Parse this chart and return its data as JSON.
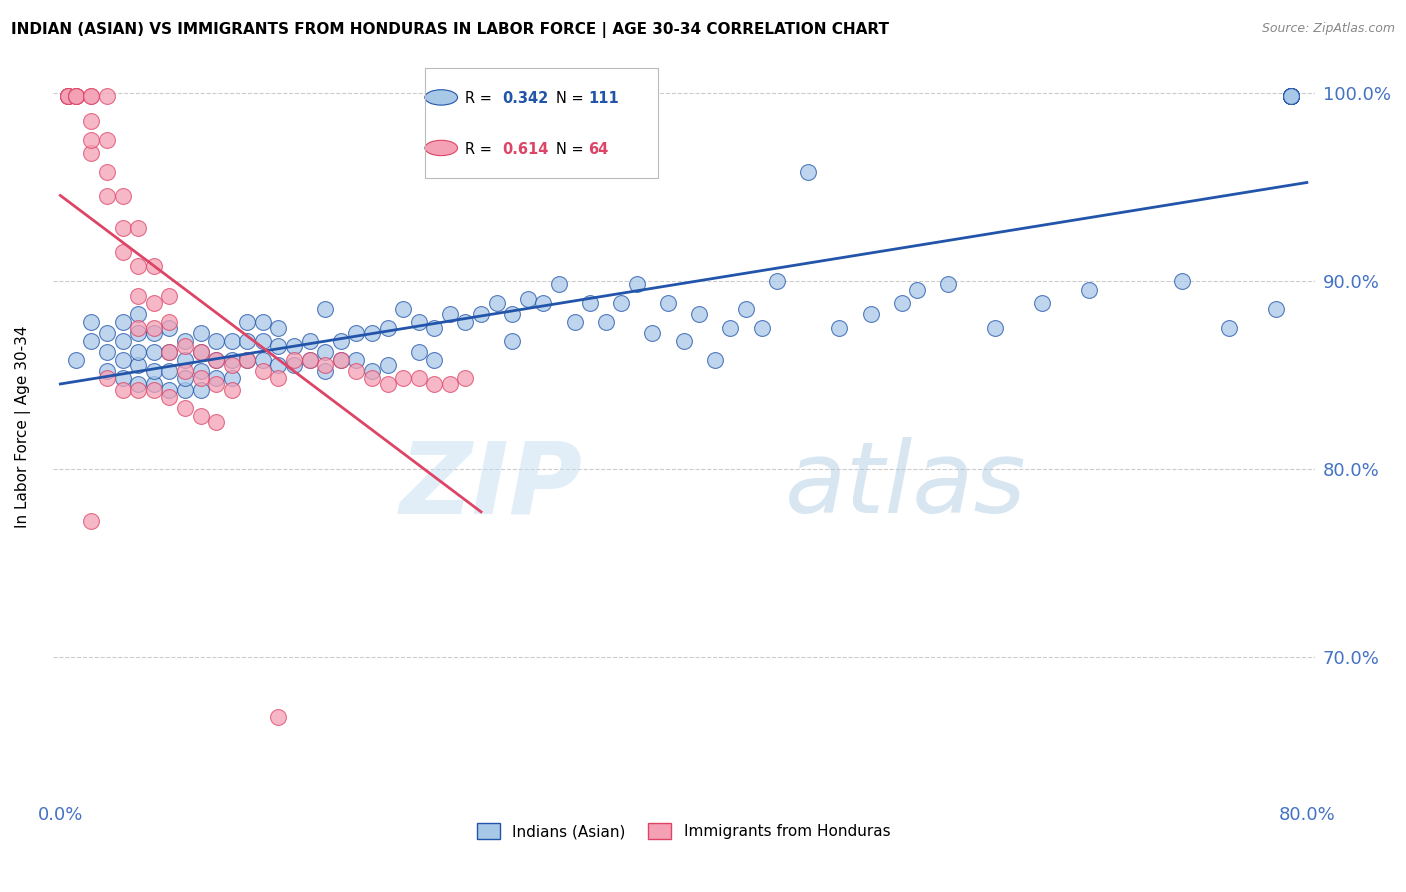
{
  "title": "INDIAN (ASIAN) VS IMMIGRANTS FROM HONDURAS IN LABOR FORCE | AGE 30-34 CORRELATION CHART",
  "source": "Source: ZipAtlas.com",
  "ylabel": "In Labor Force | Age 30-34",
  "xlabel": "",
  "blue_label": "Indians (Asian)",
  "pink_label": "Immigrants from Honduras",
  "blue_R": 0.342,
  "blue_N": 111,
  "pink_R": 0.614,
  "pink_N": 64,
  "blue_color": "#a8c8e8",
  "pink_color": "#f4a0b5",
  "blue_line_color": "#2255aa",
  "pink_line_color": "#dd4466",
  "xlim": [
    -0.005,
    0.805
  ],
  "ylim": [
    0.625,
    1.02
  ],
  "yticks": [
    0.7,
    0.8,
    0.9,
    1.0
  ],
  "ytick_labels": [
    "70.0%",
    "80.0%",
    "90.0%",
    "100.0%"
  ],
  "xticks": [
    0.0,
    0.1,
    0.2,
    0.3,
    0.4,
    0.5,
    0.6,
    0.7,
    0.8
  ],
  "xtick_labels": [
    "0.0%",
    "",
    "",
    "",
    "",
    "",
    "",
    "",
    "80.0%"
  ],
  "background_color": "#ffffff",
  "grid_color": "#cccccc",
  "watermark_zip": "ZIP",
  "watermark_atlas": "atlas",
  "blue_dots_x": [
    0.01,
    0.02,
    0.02,
    0.03,
    0.03,
    0.03,
    0.04,
    0.04,
    0.04,
    0.04,
    0.05,
    0.05,
    0.05,
    0.05,
    0.05,
    0.06,
    0.06,
    0.06,
    0.06,
    0.07,
    0.07,
    0.07,
    0.07,
    0.08,
    0.08,
    0.08,
    0.08,
    0.09,
    0.09,
    0.09,
    0.09,
    0.1,
    0.1,
    0.1,
    0.11,
    0.11,
    0.11,
    0.12,
    0.12,
    0.12,
    0.13,
    0.13,
    0.13,
    0.14,
    0.14,
    0.14,
    0.15,
    0.15,
    0.16,
    0.16,
    0.17,
    0.17,
    0.17,
    0.18,
    0.18,
    0.19,
    0.19,
    0.2,
    0.2,
    0.21,
    0.21,
    0.22,
    0.23,
    0.23,
    0.24,
    0.24,
    0.25,
    0.26,
    0.27,
    0.28,
    0.29,
    0.29,
    0.3,
    0.31,
    0.32,
    0.33,
    0.34,
    0.35,
    0.36,
    0.37,
    0.38,
    0.39,
    0.4,
    0.41,
    0.42,
    0.43,
    0.44,
    0.45,
    0.46,
    0.48,
    0.5,
    0.52,
    0.54,
    0.55,
    0.57,
    0.6,
    0.63,
    0.66,
    0.72,
    0.75,
    0.78,
    0.79,
    0.79,
    0.79,
    0.79,
    0.79,
    0.79,
    0.79,
    0.79,
    0.79,
    0.79
  ],
  "blue_dots_y": [
    0.858,
    0.868,
    0.878,
    0.852,
    0.862,
    0.872,
    0.848,
    0.858,
    0.868,
    0.878,
    0.845,
    0.855,
    0.862,
    0.872,
    0.882,
    0.845,
    0.852,
    0.862,
    0.872,
    0.842,
    0.852,
    0.862,
    0.875,
    0.842,
    0.848,
    0.858,
    0.868,
    0.842,
    0.852,
    0.862,
    0.872,
    0.848,
    0.858,
    0.868,
    0.848,
    0.858,
    0.868,
    0.858,
    0.868,
    0.878,
    0.858,
    0.868,
    0.878,
    0.855,
    0.865,
    0.875,
    0.855,
    0.865,
    0.858,
    0.868,
    0.852,
    0.862,
    0.885,
    0.858,
    0.868,
    0.858,
    0.872,
    0.852,
    0.872,
    0.855,
    0.875,
    0.885,
    0.862,
    0.878,
    0.858,
    0.875,
    0.882,
    0.878,
    0.882,
    0.888,
    0.868,
    0.882,
    0.89,
    0.888,
    0.898,
    0.878,
    0.888,
    0.878,
    0.888,
    0.898,
    0.872,
    0.888,
    0.868,
    0.882,
    0.858,
    0.875,
    0.885,
    0.875,
    0.9,
    0.958,
    0.875,
    0.882,
    0.888,
    0.895,
    0.898,
    0.875,
    0.888,
    0.895,
    0.9,
    0.875,
    0.885,
    0.998,
    0.998,
    0.998,
    0.998,
    0.998,
    0.998,
    0.998,
    0.998,
    0.998,
    0.998
  ],
  "pink_dots_x": [
    0.005,
    0.005,
    0.005,
    0.005,
    0.005,
    0.01,
    0.01,
    0.01,
    0.01,
    0.02,
    0.02,
    0.02,
    0.02,
    0.02,
    0.03,
    0.03,
    0.03,
    0.03,
    0.04,
    0.04,
    0.04,
    0.05,
    0.05,
    0.05,
    0.05,
    0.06,
    0.06,
    0.06,
    0.07,
    0.07,
    0.07,
    0.08,
    0.08,
    0.09,
    0.09,
    0.1,
    0.1,
    0.11,
    0.11,
    0.12,
    0.13,
    0.14,
    0.15,
    0.16,
    0.17,
    0.18,
    0.19,
    0.2,
    0.21,
    0.22,
    0.23,
    0.24,
    0.25,
    0.26,
    0.02,
    0.03,
    0.04,
    0.05,
    0.06,
    0.07,
    0.08,
    0.09,
    0.1,
    0.14
  ],
  "pink_dots_y": [
    0.998,
    0.998,
    0.998,
    0.998,
    0.998,
    0.998,
    0.998,
    0.998,
    0.998,
    0.968,
    0.975,
    0.985,
    0.998,
    0.998,
    0.945,
    0.958,
    0.975,
    0.998,
    0.915,
    0.928,
    0.945,
    0.875,
    0.892,
    0.908,
    0.928,
    0.875,
    0.888,
    0.908,
    0.862,
    0.878,
    0.892,
    0.852,
    0.865,
    0.848,
    0.862,
    0.845,
    0.858,
    0.842,
    0.855,
    0.858,
    0.852,
    0.848,
    0.858,
    0.858,
    0.855,
    0.858,
    0.852,
    0.848,
    0.845,
    0.848,
    0.848,
    0.845,
    0.845,
    0.848,
    0.772,
    0.848,
    0.842,
    0.842,
    0.842,
    0.838,
    0.832,
    0.828,
    0.825,
    0.668
  ]
}
